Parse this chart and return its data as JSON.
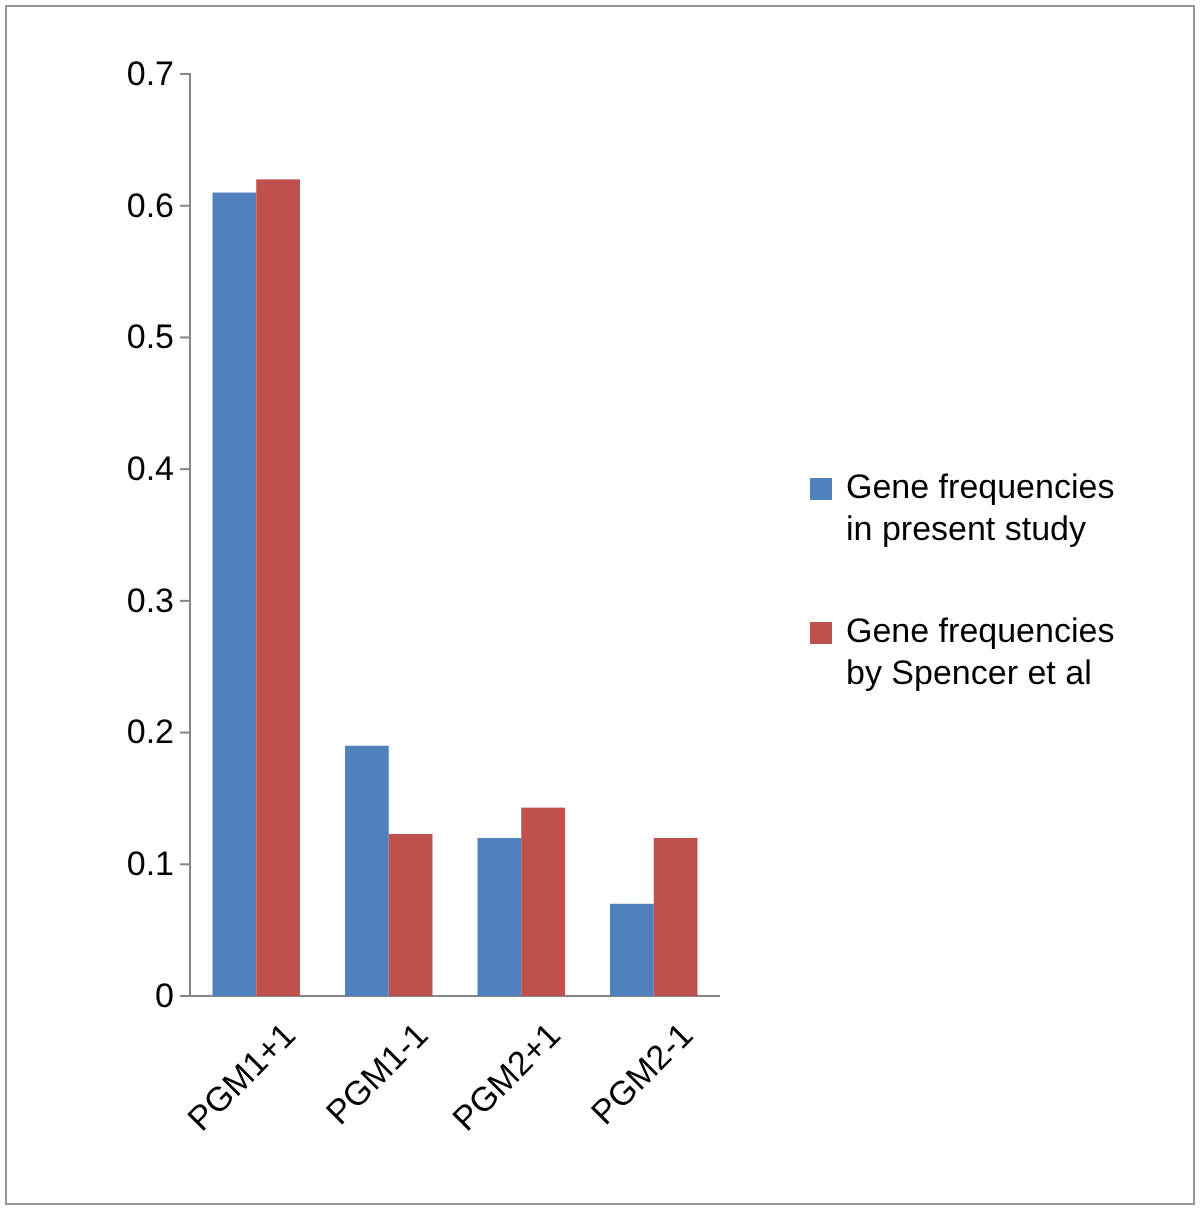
{
  "chart_data": {
    "type": "bar",
    "categories": [
      "PGM1+1",
      "PGM1-1",
      "PGM2+1",
      "PGM2-1"
    ],
    "series": [
      {
        "name": "Gene frequencies in present study",
        "color": "#4f81bd",
        "values": [
          0.61,
          0.19,
          0.12,
          0.07
        ]
      },
      {
        "name": "Gene frequencies by Spencer et al",
        "color": "#c0504d",
        "values": [
          0.62,
          0.123,
          0.143,
          0.12
        ]
      }
    ],
    "ylim": [
      0,
      0.7
    ],
    "yticks": [
      0,
      0.1,
      0.2,
      0.3,
      0.4,
      0.5,
      0.6,
      0.7
    ],
    "grid": false,
    "legend": "right"
  }
}
